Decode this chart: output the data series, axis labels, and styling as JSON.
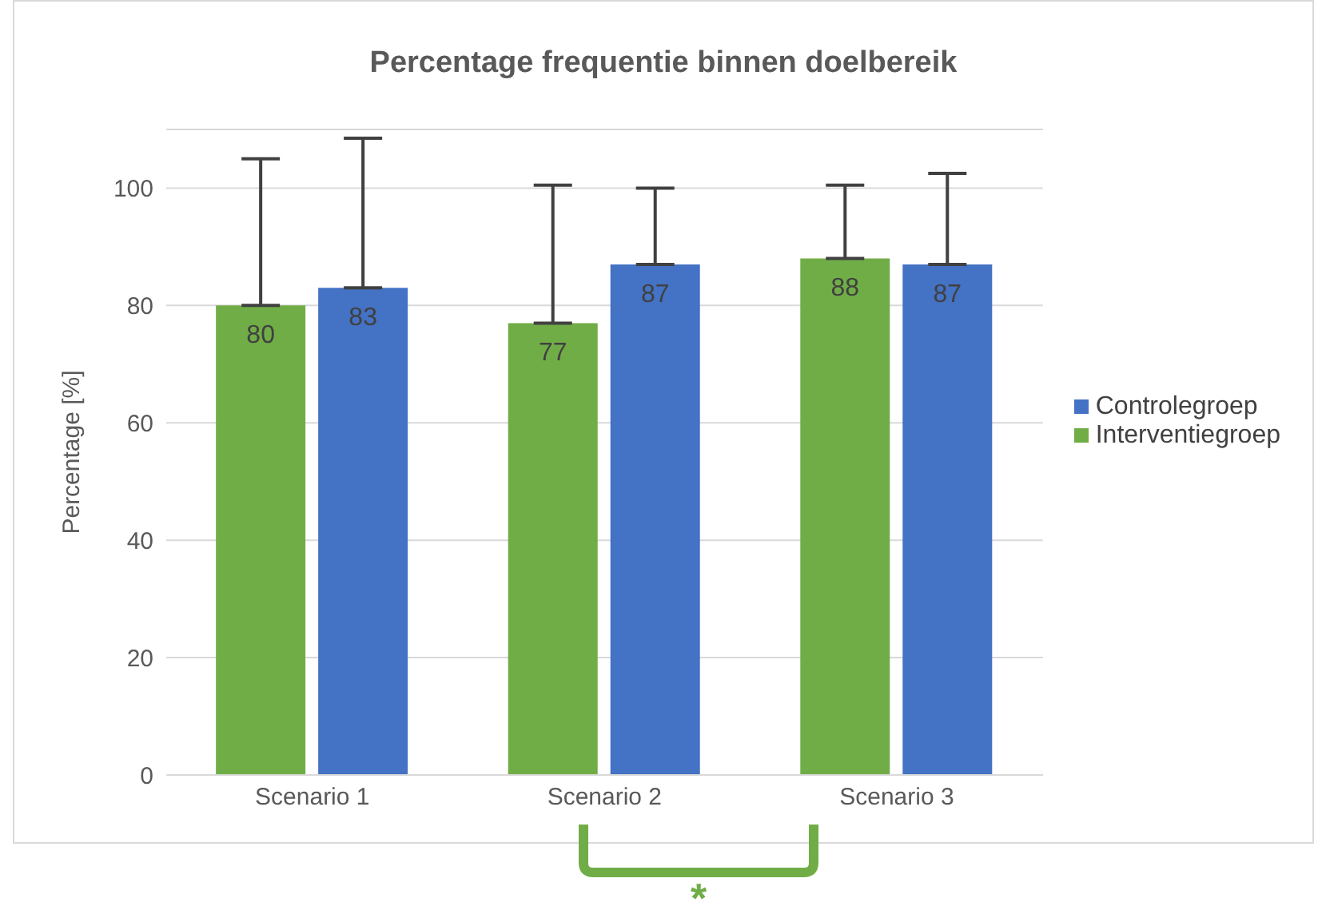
{
  "chart_data": {
    "type": "bar",
    "title": "Percentage frequentie binnen doelbereik",
    "ylabel": "Percentage [%]",
    "categories": [
      "Scenario 1",
      "Scenario 2",
      "Scenario 3"
    ],
    "series": [
      {
        "name": "Interventiegroep",
        "color": "#70ad47",
        "values": [
          80,
          77,
          88
        ],
        "errors": [
          [
            80,
            105
          ],
          [
            77,
            100.5
          ],
          [
            88,
            100.5
          ]
        ]
      },
      {
        "name": "Controlegroep",
        "color": "#4472c4",
        "values": [
          83,
          87,
          87
        ],
        "errors": [
          [
            83,
            108.5
          ],
          [
            87,
            100
          ],
          [
            87,
            102.5
          ]
        ]
      }
    ],
    "ylim": [
      0,
      110
    ],
    "yticks": [
      0,
      20,
      40,
      60,
      80,
      100
    ],
    "grid": "y",
    "legend": "right",
    "data_labels": true,
    "annotations": [
      "*"
    ]
  }
}
